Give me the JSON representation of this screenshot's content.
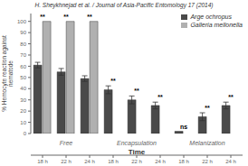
{
  "chart_data": {
    "type": "bar",
    "title": "H. Sheykhnejad et al. / Journal of Asia-Pacific Entomology 17 (2014)",
    "xlabel": "Time",
    "ylabel": "% Hemocyte reaction against\nnematode",
    "categories": [
      "18 h",
      "22 h",
      "24 h",
      "18 h",
      "22 h",
      "24 h",
      "18 h",
      "22 h",
      "24 h"
    ],
    "groups": [
      "Free",
      "Encapsulation",
      "Melanization"
    ],
    "series": [
      {
        "name": "Arge ochropus",
        "color": "#4a4a4a",
        "values": [
          61,
          55,
          49,
          39,
          30,
          25,
          2,
          15,
          25
        ],
        "errors": [
          2.5,
          3,
          2.5,
          3.5,
          3.5,
          3,
          0,
          3.5,
          3
        ]
      },
      {
        "name": "Galleria mellonella",
        "color": "#b0b0b0",
        "values": [
          100,
          100,
          100,
          0,
          0,
          0,
          0,
          0,
          0
        ]
      }
    ],
    "annotations": [
      "**",
      "**",
      "**",
      "**",
      "**",
      "**",
      "ns",
      "**",
      "**"
    ],
    "ylim": [
      0,
      107
    ],
    "yticks": [
      0,
      10,
      20,
      30,
      40,
      50,
      60,
      70,
      80,
      90,
      100
    ],
    "grid": false,
    "legend": "upper right"
  }
}
